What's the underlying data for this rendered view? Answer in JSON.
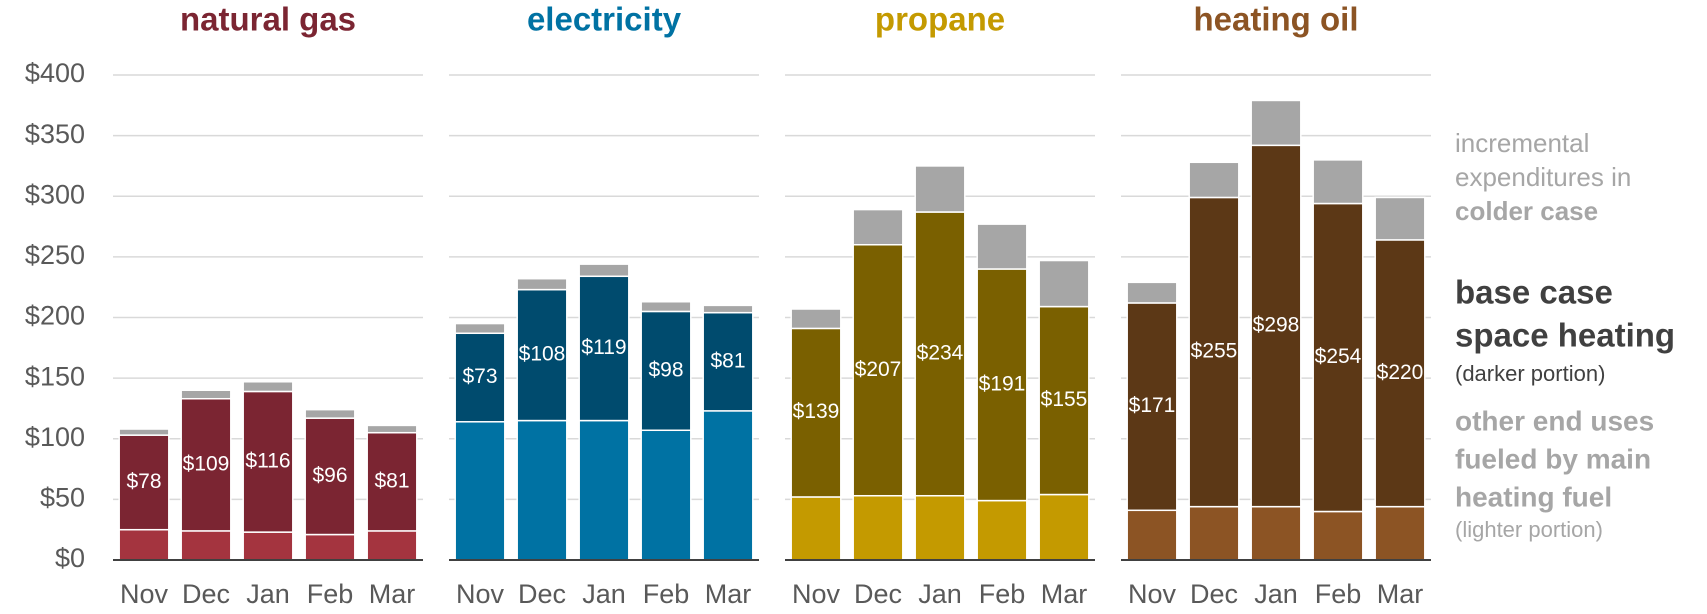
{
  "chart_data": [
    {
      "type": "stacked-bar",
      "title": "natural gas",
      "title_color": "#7b2532",
      "categories": [
        "Nov",
        "Dec",
        "Jan",
        "Feb",
        "Mar"
      ],
      "ylim": [
        0,
        400
      ],
      "yticks": [
        {
          "value": 0,
          "label": "$0"
        },
        {
          "value": 50,
          "label": "$50"
        },
        {
          "value": 100,
          "label": "$100"
        },
        {
          "value": 150,
          "label": "$150"
        },
        {
          "value": 200,
          "label": "$200"
        },
        {
          "value": 250,
          "label": "$250"
        },
        {
          "value": 300,
          "label": "$300"
        },
        {
          "value": 350,
          "label": "$350"
        },
        {
          "value": 400,
          "label": "$400"
        }
      ],
      "grid": true,
      "series": [
        {
          "color": "#a4343f",
          "values": [
            25,
            24,
            23,
            21,
            24
          ]
        },
        {
          "color": "#7b2532",
          "values": [
            78,
            109,
            116,
            96,
            81
          ],
          "value_labels": [
            "$78",
            "$109",
            "$116",
            "$96",
            "$81"
          ]
        },
        {
          "color": "#a6a6a6",
          "values": [
            5,
            7,
            8,
            7,
            6
          ]
        }
      ]
    },
    {
      "type": "stacked-bar",
      "title": "electricity",
      "title_color": "#0072a3",
      "categories": [
        "Nov",
        "Dec",
        "Jan",
        "Feb",
        "Mar"
      ],
      "ylim": [
        0,
        400
      ],
      "yticks": [
        0,
        50,
        100,
        150,
        200,
        250,
        300,
        350,
        400
      ],
      "grid": true,
      "series": [
        {
          "color": "#0072a3",
          "values": [
            114,
            115,
            115,
            107,
            123
          ]
        },
        {
          "color": "#004b6e",
          "values": [
            73,
            108,
            119,
            98,
            81
          ],
          "value_labels": [
            "$73",
            "$108",
            "$119",
            "$98",
            "$81"
          ]
        },
        {
          "color": "#a6a6a6",
          "values": [
            8,
            9,
            10,
            8,
            6
          ]
        }
      ]
    },
    {
      "type": "stacked-bar",
      "title": "propane",
      "title_color": "#c49a00",
      "categories": [
        "Nov",
        "Dec",
        "Jan",
        "Feb",
        "Mar"
      ],
      "ylim": [
        0,
        400
      ],
      "yticks": [
        0,
        50,
        100,
        150,
        200,
        250,
        300,
        350,
        400
      ],
      "grid": true,
      "series": [
        {
          "color": "#c49a00",
          "values": [
            52,
            53,
            53,
            49,
            54
          ]
        },
        {
          "color": "#7a6000",
          "values": [
            139,
            207,
            234,
            191,
            155
          ],
          "value_labels": [
            "$139",
            "$207",
            "$234",
            "$191",
            "$155"
          ]
        },
        {
          "color": "#a6a6a6",
          "values": [
            16,
            29,
            38,
            37,
            38
          ]
        }
      ]
    },
    {
      "type": "stacked-bar",
      "title": "heating oil",
      "title_color": "#8c5424",
      "categories": [
        "Nov",
        "Dec",
        "Jan",
        "Feb",
        "Mar"
      ],
      "ylim": [
        0,
        400
      ],
      "yticks": [
        0,
        50,
        100,
        150,
        200,
        250,
        300,
        350,
        400
      ],
      "grid": true,
      "series": [
        {
          "color": "#8c5424",
          "values": [
            41,
            44,
            44,
            40,
            44
          ]
        },
        {
          "color": "#5c3816",
          "values": [
            171,
            255,
            298,
            254,
            220
          ],
          "value_labels": [
            "$171",
            "$255",
            "$298",
            "$254",
            "$220"
          ]
        },
        {
          "color": "#a6a6a6",
          "values": [
            17,
            29,
            37,
            36,
            35
          ]
        }
      ]
    }
  ],
  "legend": [
    {
      "color": "#a6a6a6",
      "lines": [
        "incremental",
        "expenditures in"
      ],
      "bold_lines": [
        "colder case"
      ]
    },
    {
      "color": "#404040",
      "bold_lines": [
        "base case",
        "space heating"
      ],
      "note": "(darker portion)"
    },
    {
      "color": "#a6a6a6",
      "bold_lines": [
        "other end uses",
        "fueled by main",
        "heating fuel"
      ],
      "note": "(lighter portion)"
    }
  ]
}
